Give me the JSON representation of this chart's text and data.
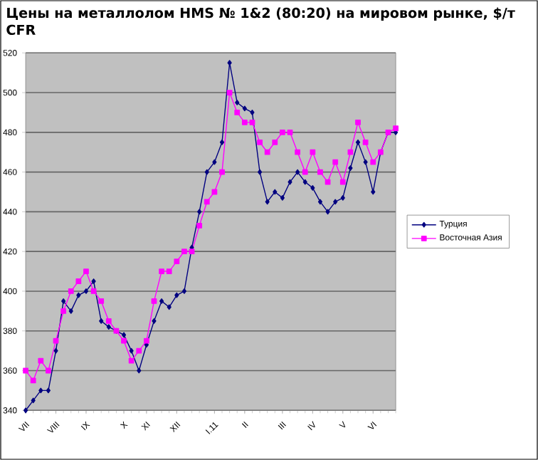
{
  "chart_data": {
    "type": "line",
    "title": "Цены на металлолом HMS № 1&2 (80:20) на мировом рынке, $/т CFR",
    "categories": [
      "VII",
      null,
      null,
      null,
      "VIII",
      null,
      null,
      null,
      "IX",
      null,
      null,
      null,
      null,
      "X",
      null,
      null,
      "XI",
      null,
      null,
      null,
      "XII",
      null,
      null,
      null,
      null,
      "I.11",
      null,
      null,
      null,
      "II",
      null,
      null,
      null,
      null,
      "III",
      null,
      null,
      null,
      "IV",
      null,
      null,
      null,
      "V",
      null,
      null,
      null,
      "VI",
      null,
      null,
      null
    ],
    "series": [
      {
        "name": "Турция",
        "color": "#000080",
        "marker": "diamond",
        "values": [
          340,
          345,
          350,
          350,
          370,
          395,
          390,
          398,
          400,
          405,
          385,
          382,
          380,
          378,
          370,
          360,
          373,
          385,
          395,
          392,
          398,
          400,
          422,
          440,
          460,
          465,
          475,
          515,
          495,
          492,
          490,
          460,
          445,
          450,
          447,
          455,
          460,
          455,
          452,
          445,
          440,
          445,
          447,
          462,
          475,
          465,
          450,
          470,
          480,
          480
        ]
      },
      {
        "name": "Восточная Азия",
        "color": "#ff00ff",
        "marker": "square",
        "values": [
          360,
          355,
          365,
          360,
          375,
          390,
          400,
          405,
          410,
          400,
          395,
          385,
          380,
          375,
          365,
          370,
          375,
          395,
          410,
          410,
          415,
          420,
          420,
          433,
          445,
          450,
          460,
          500,
          490,
          485,
          485,
          475,
          470,
          475,
          480,
          480,
          470,
          460,
          470,
          460,
          455,
          465,
          455,
          470,
          485,
          475,
          465,
          470,
          480,
          482
        ]
      }
    ],
    "ylim": [
      340,
      520
    ],
    "yticks": [
      340,
      360,
      380,
      400,
      420,
      440,
      460,
      480,
      500,
      520
    ],
    "grid": "y",
    "legend": "right"
  }
}
